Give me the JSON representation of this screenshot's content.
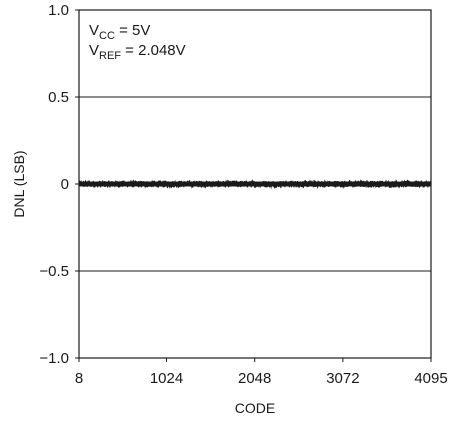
{
  "chart_data": {
    "type": "line",
    "xlabel": "CODE",
    "ylabel": "DNL (LSB)",
    "xlim": [
      8,
      4095
    ],
    "ylim": [
      -1.0,
      1.0
    ],
    "x_ticks": [
      8,
      1024,
      2048,
      3072,
      4095
    ],
    "x_tick_labels": [
      "8",
      "1024",
      "2048",
      "3072",
      "4095"
    ],
    "y_ticks": [
      1.0,
      0.5,
      0,
      -0.5,
      -1.0
    ],
    "y_tick_labels": [
      "1.0",
      "0.5",
      "0",
      "−0.5",
      "−1.0"
    ],
    "grid": "horizontal",
    "annotations": {
      "vcc": {
        "main": "V",
        "sub": "CC",
        "rest": " = 5V"
      },
      "vref": {
        "main": "V",
        "sub": "REF",
        "rest": " = 2.048V"
      }
    },
    "series": [
      {
        "x_start": 8,
        "x_end": 4095,
        "typical_value": 0,
        "noise_band": [
          -0.02,
          0.02
        ],
        "color": "#1a1a1a"
      }
    ]
  }
}
